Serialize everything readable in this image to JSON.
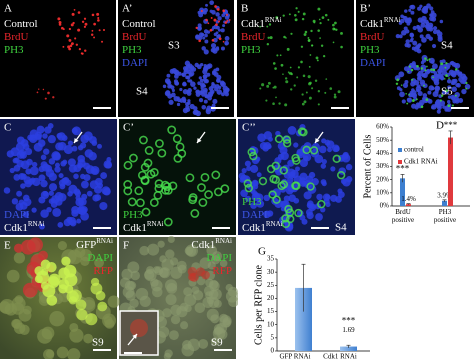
{
  "panels": [
    {
      "letter": "A",
      "labels": [
        {
          "text": "Control",
          "color": "#ffffff"
        },
        {
          "text": "BrdU",
          "color": "#e8262c"
        },
        {
          "text": "PH3",
          "color": "#3fd13f"
        }
      ],
      "stages": []
    },
    {
      "letter": "A’",
      "labels": [
        {
          "text": "Control",
          "color": "#ffffff"
        },
        {
          "text": "BrdU",
          "color": "#e8262c"
        },
        {
          "text": "PH3",
          "color": "#3fd13f"
        },
        {
          "text": "DAPI",
          "color": "#3c55e6"
        }
      ],
      "stages": [
        "S3",
        "S4"
      ]
    },
    {
      "letter": "B",
      "labels": [
        {
          "text": "Cdk1",
          "sup": "RNAi",
          "color": "#ffffff"
        },
        {
          "text": "BrdU",
          "color": "#e8262c"
        },
        {
          "text": "PH3",
          "color": "#3fd13f"
        }
      ],
      "stages": []
    },
    {
      "letter": "B’",
      "labels": [
        {
          "text": "Cdk1",
          "sup": "RNAi",
          "color": "#ffffff"
        },
        {
          "text": "BrdU",
          "color": "#e8262c"
        },
        {
          "text": "PH3",
          "color": "#3fd13f"
        },
        {
          "text": "DAPI",
          "color": "#3c55e6"
        }
      ],
      "stages": [
        "S4",
        "S5"
      ]
    },
    {
      "letter": "C",
      "labels": [
        {
          "text": "DAPI",
          "color": "#3c55e6"
        },
        {
          "text": "Cdk1",
          "sup": "RNAi",
          "color": "#ffffff"
        }
      ],
      "stages": []
    },
    {
      "letter": "C’",
      "labels": [
        {
          "text": "PH3",
          "color": "#3fd13f"
        },
        {
          "text": "Cdk1",
          "sup": "RNAi",
          "color": "#ffffff"
        }
      ],
      "stages": []
    },
    {
      "letter": "C’’",
      "labels": [
        {
          "text": "PH3",
          "color": "#3fd13f"
        },
        {
          "text": "DAPI",
          "color": "#3c55e6"
        },
        {
          "text": "Cdk1",
          "sup": "RNAi",
          "color": "#ffffff"
        }
      ],
      "stages": [
        "S4"
      ]
    },
    {
      "letter": "E",
      "labels": [
        {
          "text": "GFP",
          "sup": "RNAi",
          "color": "#ffffff"
        },
        {
          "text": "DAPI",
          "color": "#3fd13f"
        },
        {
          "text": "RFP",
          "color": "#e8262c"
        }
      ],
      "stages": [
        "S9"
      ]
    },
    {
      "letter": "F",
      "labels": [
        {
          "text": "Cdk1",
          "sup": "RNAi",
          "color": "#ffffff"
        },
        {
          "text": "DAPI",
          "color": "#3fd13f"
        },
        {
          "text": "RFP",
          "color": "#e8262c"
        }
      ],
      "stages": [
        "S9"
      ]
    }
  ],
  "charts": [
    {
      "type": "bar",
      "letter": "D",
      "y_label": "Percent of Cells",
      "categories": [
        "BrdU positive",
        "PH3 positive"
      ],
      "series": [
        {
          "name": "control",
          "color": "#3d7fd0",
          "values": [
            21,
            3.9
          ],
          "errors": [
            3,
            0.8
          ],
          "value_labels": [
            null,
            "3.9%"
          ],
          "significance": [
            "***",
            null
          ]
        },
        {
          "name": "Cdk1 RNAi",
          "color": "#e0393d",
          "values": [
            1.4,
            52
          ],
          "errors": [
            0.4,
            5
          ],
          "value_labels": [
            "1.4%",
            null
          ],
          "significance": [
            null,
            "***"
          ]
        }
      ],
      "ylim": [
        0,
        60
      ],
      "yticks": [
        {
          "value": 0,
          "label": "0%"
        },
        {
          "value": 10,
          "label": "10%"
        },
        {
          "value": 20,
          "label": "20%"
        },
        {
          "value": 30,
          "label": "30%"
        },
        {
          "value": 40,
          "label": "40%"
        },
        {
          "value": 50,
          "label": "50%"
        },
        {
          "value": 60,
          "label": "60%"
        }
      ],
      "legend": "upper left"
    },
    {
      "type": "bar",
      "letter": "G",
      "y_label": "Cells per RFP clone",
      "categories": [
        "GFP RNAi",
        "Cdk1 RNAi"
      ],
      "series": [
        {
          "color": "#5d96d8",
          "values": [
            24,
            1.69
          ],
          "errors": [
            9,
            0.5
          ],
          "value_labels": [
            null,
            "1.69"
          ],
          "significance": [
            null,
            "***"
          ]
        }
      ],
      "ylim": [
        0,
        35
      ],
      "yticks": [
        0,
        5,
        10,
        15,
        20,
        25,
        30,
        35
      ]
    }
  ]
}
